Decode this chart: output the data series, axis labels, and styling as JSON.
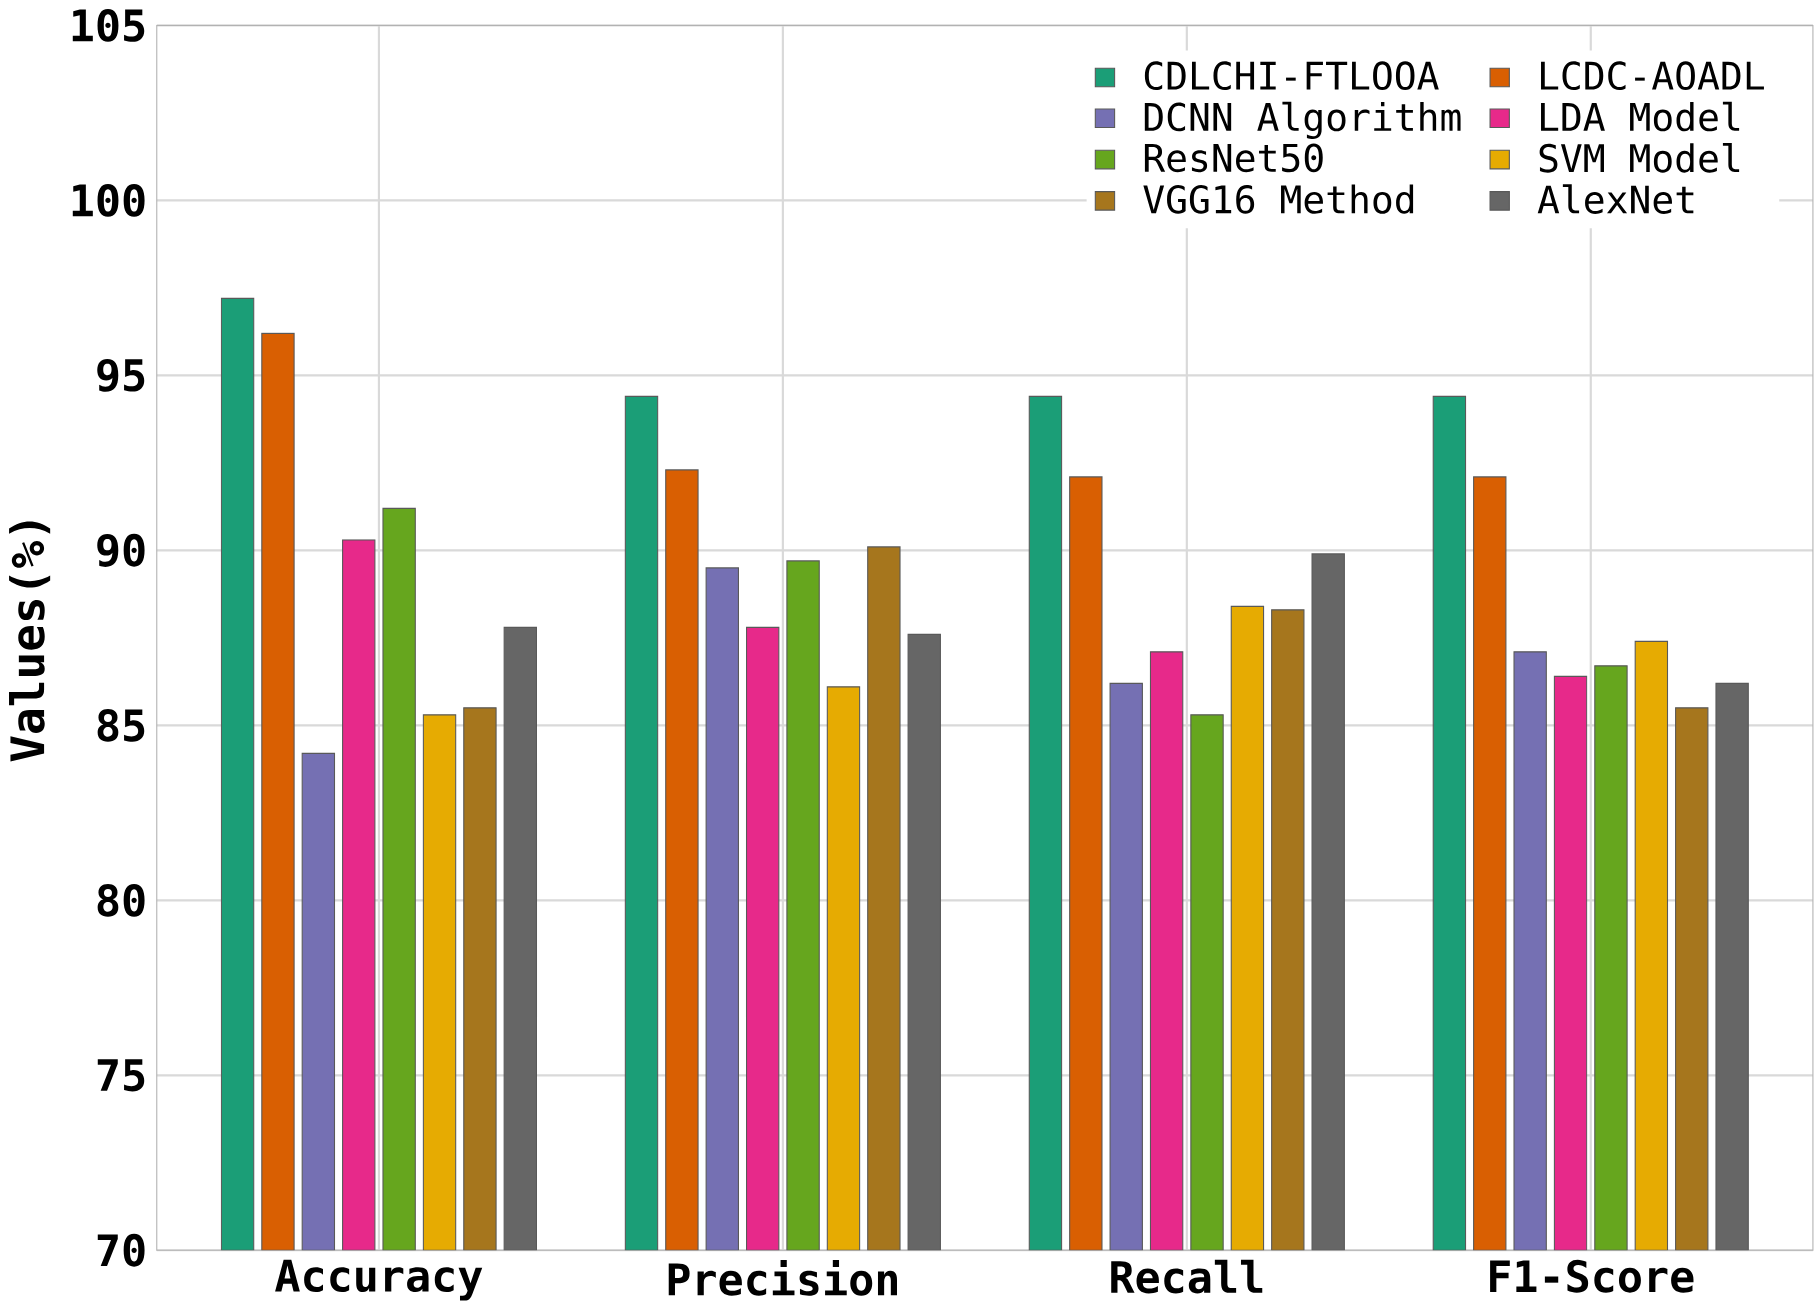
{
  "chart_data": {
    "type": "bar",
    "ylabel": "Values(%)",
    "categories": [
      "Accuracy",
      "Precision",
      "Recall",
      "F1-Score"
    ],
    "series": [
      {
        "name": "CDLCHI-FTLOOA",
        "color": "#1b9e77",
        "values": [
          97.2,
          94.4,
          94.4,
          94.4
        ]
      },
      {
        "name": "LCDC-AOADL",
        "color": "#d95f02",
        "values": [
          96.2,
          92.3,
          92.1,
          92.1
        ]
      },
      {
        "name": "DCNN Algorithm",
        "color": "#7570b3",
        "values": [
          84.2,
          89.5,
          86.2,
          87.1
        ]
      },
      {
        "name": "LDA Model",
        "color": "#e7298a",
        "values": [
          90.3,
          87.8,
          87.1,
          86.4
        ]
      },
      {
        "name": "ResNet50",
        "color": "#66a61e",
        "values": [
          91.2,
          89.7,
          85.3,
          86.7
        ]
      },
      {
        "name": "SVM Model",
        "color": "#e6ab02",
        "values": [
          85.3,
          86.1,
          88.4,
          87.4
        ]
      },
      {
        "name": "VGG16 Method",
        "color": "#a6761d",
        "values": [
          85.5,
          90.1,
          88.3,
          85.5
        ]
      },
      {
        "name": "AlexNet",
        "color": "#666666",
        "values": [
          87.8,
          87.6,
          89.9,
          86.2
        ]
      }
    ],
    "ylim": [
      70,
      105
    ],
    "yticks": [
      70,
      75,
      80,
      85,
      90,
      95,
      100,
      105
    ],
    "grid": true,
    "legend": "top right"
  }
}
